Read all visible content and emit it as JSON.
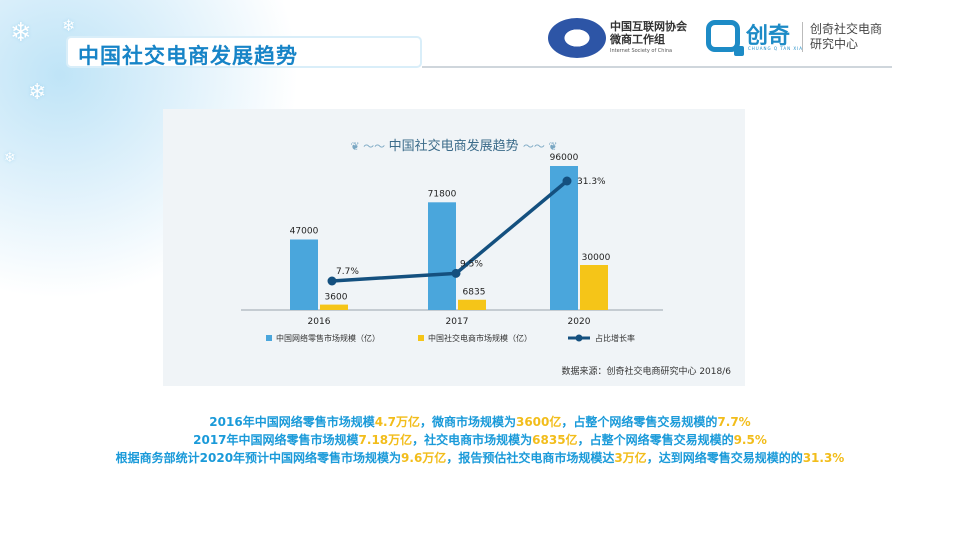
{
  "slide": {
    "title": "中国社交电商发展趋势"
  },
  "logos": {
    "isc_cn_line1": "中国互联网协会",
    "isc_cn_line2": "微商工作组",
    "isc_en": "Internet Society of China",
    "chuangqi_name": "创奇",
    "chuangqi_sub": "CHUANG  Q  TAN  XIA",
    "chuangqi_right_line1": "创奇社交电商",
    "chuangqi_right_line2": "研究中心"
  },
  "chart_data": {
    "type": "bar",
    "title": "中国社交电商发展趋势",
    "categories": [
      "2016",
      "2017",
      "2020"
    ],
    "series": [
      {
        "name": "中国网络零售市场规模（亿）",
        "type": "bar",
        "values": [
          47000,
          71800,
          96000
        ],
        "labels": [
          "47000",
          "71800",
          "96000"
        ],
        "color": "#4aa6dc"
      },
      {
        "name": "中国社交电商市场规模（亿）",
        "type": "bar",
        "values": [
          3600,
          6835,
          30000
        ],
        "labels": [
          "3600",
          "6835",
          "30000"
        ],
        "color": "#f5c518"
      },
      {
        "name": "占比增长率",
        "type": "line",
        "values": [
          7.7,
          9.5,
          31.3
        ],
        "labels": [
          "7.7%",
          "9.5%",
          "31.3%"
        ],
        "color": "#14507f"
      }
    ],
    "ylim": [
      0,
      110000
    ],
    "legend": "bottom",
    "source": "数据来源：创奇社交电商研究中心 2018/6"
  },
  "summary": {
    "line1": [
      {
        "t": "2016年中国网络零售市场规模",
        "hl": false
      },
      {
        "t": "4.7万亿",
        "hl": true
      },
      {
        "t": "，微商市场规模为",
        "hl": false
      },
      {
        "t": "3600亿",
        "hl": true
      },
      {
        "t": "，占整个网络零售交易规模的",
        "hl": false
      },
      {
        "t": "7.7%",
        "hl": true
      }
    ],
    "line2": [
      {
        "t": "2017年中国网络零售市场规模",
        "hl": false
      },
      {
        "t": "7.18万亿",
        "hl": true
      },
      {
        "t": "，社交电商市场规模为",
        "hl": false
      },
      {
        "t": "6835亿",
        "hl": true
      },
      {
        "t": "，占整个网络零售交易规模的",
        "hl": false
      },
      {
        "t": "9.5%",
        "hl": true
      }
    ],
    "line3": [
      {
        "t": "根据商务部统计2020年预计中国网络零售市场规模为",
        "hl": false
      },
      {
        "t": "9.6万亿",
        "hl": true
      },
      {
        "t": "，报告预估社交电商市场规模达",
        "hl": false
      },
      {
        "t": "3万亿",
        "hl": true
      },
      {
        "t": "，达到网络零售交易规模的的",
        "hl": false
      },
      {
        "t": "31.3%",
        "hl": true
      }
    ]
  }
}
